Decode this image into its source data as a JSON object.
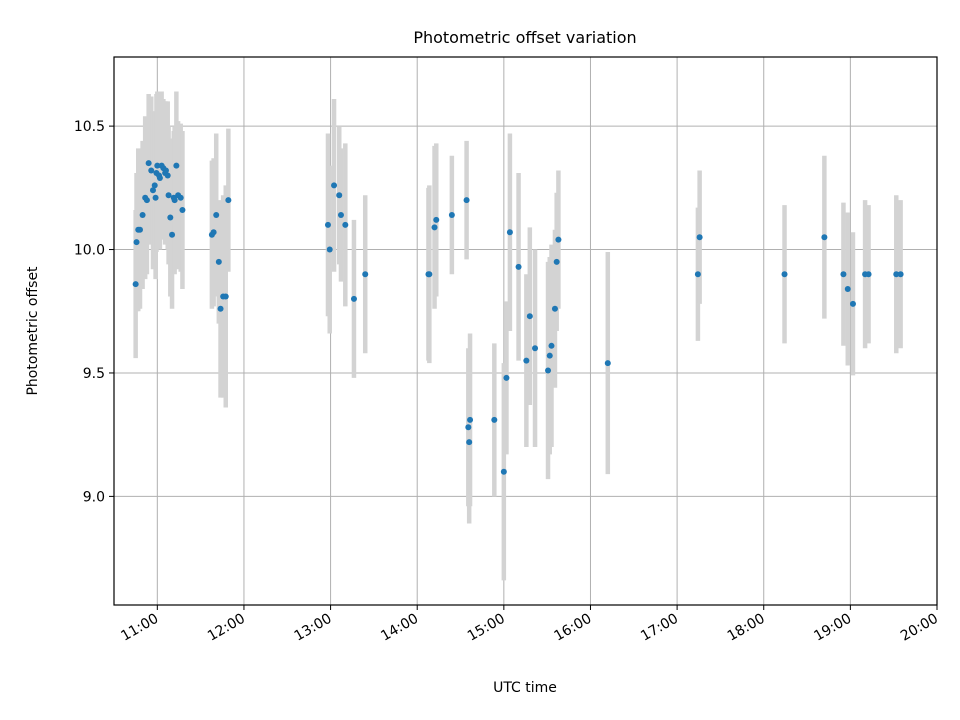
{
  "chart_data": {
    "type": "scatter",
    "title": "Photometric offset variation",
    "xlabel": "UTC time",
    "ylabel": "Photometric offset",
    "x_unit": "UTC hours",
    "xlim": [
      10.5,
      20.0
    ],
    "ylim": [
      8.56,
      10.78
    ],
    "x_ticks": [
      11,
      12,
      13,
      14,
      15,
      16,
      17,
      18,
      19,
      20
    ],
    "x_tick_labels": [
      "11:00",
      "12:00",
      "13:00",
      "14:00",
      "15:00",
      "16:00",
      "17:00",
      "18:00",
      "19:00",
      "20:00"
    ],
    "y_ticks": [
      9.0,
      9.5,
      10.0,
      10.5
    ],
    "y_tick_labels": [
      "9.0",
      "9.5",
      "10.0",
      "10.5"
    ],
    "grid": true,
    "legend": "none",
    "series": [
      {
        "x": [
          10.75,
          10.76,
          10.78,
          10.8,
          10.83,
          10.86,
          10.88,
          10.9,
          10.93,
          10.95,
          10.97,
          10.98,
          10.99,
          11.0,
          11.02,
          11.03,
          11.05,
          11.07,
          11.09,
          11.1,
          11.12,
          11.13,
          11.15,
          11.17,
          11.19,
          11.2,
          11.22,
          11.24,
          11.27,
          11.29,
          11.63,
          11.65,
          11.68,
          11.71,
          11.73,
          11.76,
          11.79,
          11.82,
          12.97,
          12.99,
          13.04,
          13.1,
          13.12,
          13.17,
          13.27,
          13.4,
          14.13,
          14.14,
          14.2,
          14.22,
          14.4,
          14.57,
          14.59,
          14.6,
          14.61,
          14.89,
          15.0,
          15.03,
          15.07,
          15.17,
          15.26,
          15.3,
          15.36,
          15.51,
          15.53,
          15.55,
          15.59,
          15.61,
          15.63,
          16.2,
          17.24,
          17.26,
          18.24,
          18.7,
          18.92,
          18.97,
          19.03,
          19.17,
          19.21,
          19.53,
          19.58
        ],
        "y": [
          9.86,
          10.03,
          10.08,
          10.08,
          10.14,
          10.21,
          10.2,
          10.35,
          10.32,
          10.24,
          10.26,
          10.21,
          10.31,
          10.34,
          10.3,
          10.29,
          10.34,
          10.33,
          10.31,
          10.32,
          10.3,
          10.22,
          10.13,
          10.06,
          10.21,
          10.2,
          10.34,
          10.22,
          10.21,
          10.16,
          10.06,
          10.07,
          10.14,
          9.95,
          9.76,
          9.81,
          9.81,
          10.2,
          10.1,
          10.0,
          10.26,
          10.22,
          10.14,
          10.1,
          9.8,
          9.9,
          9.9,
          9.9,
          10.09,
          10.12,
          10.14,
          10.2,
          9.28,
          9.22,
          9.31,
          9.31,
          9.1,
          9.48,
          10.07,
          9.93,
          9.55,
          9.73,
          9.6,
          9.51,
          9.57,
          9.61,
          9.76,
          9.95,
          10.04,
          9.54,
          9.9,
          10.05,
          9.9,
          10.05,
          9.9,
          9.84,
          9.78,
          9.9,
          9.9,
          9.9,
          9.9
        ],
        "yerr": [
          0.3,
          0.28,
          0.33,
          0.32,
          0.3,
          0.33,
          0.3,
          0.28,
          0.3,
          0.32,
          0.3,
          0.33,
          0.32,
          0.3,
          0.28,
          0.29,
          0.3,
          0.28,
          0.29,
          0.28,
          0.3,
          0.28,
          0.32,
          0.3,
          0.27,
          0.3,
          0.3,
          0.3,
          0.3,
          0.32,
          0.3,
          0.3,
          0.33,
          0.25,
          0.36,
          0.41,
          0.45,
          0.29,
          0.37,
          0.34,
          0.35,
          0.28,
          0.27,
          0.33,
          0.32,
          0.32,
          0.35,
          0.36,
          0.33,
          0.31,
          0.24,
          0.24,
          0.32,
          0.33,
          0.35,
          0.31,
          0.44,
          0.31,
          0.4,
          0.38,
          0.35,
          0.36,
          0.4,
          0.44,
          0.4,
          0.41,
          0.32,
          0.28,
          0.28,
          0.45,
          0.27,
          0.27,
          0.28,
          0.33,
          0.29,
          0.31,
          0.29,
          0.3,
          0.28,
          0.32,
          0.3
        ],
        "marker_color": "#1f77b4",
        "errorbar_color": "#d3d3d3"
      }
    ]
  }
}
